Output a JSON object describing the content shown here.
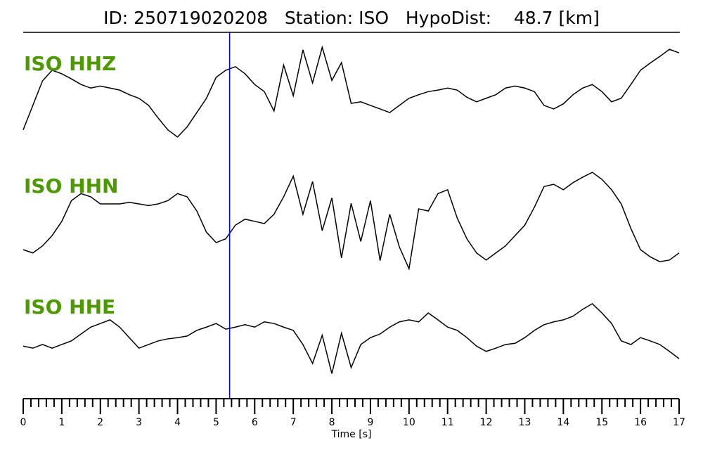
{
  "chart_data": {
    "type": "line",
    "title": "ID: 250719020208   Station: ISO   HypoDist:    48.7 [km]",
    "x_label": "Time [s]",
    "x": [
      0,
      0.25,
      0.5,
      0.75,
      1,
      1.25,
      1.5,
      1.75,
      2,
      2.25,
      2.5,
      2.75,
      3,
      3.25,
      3.5,
      3.75,
      4,
      4.25,
      4.5,
      4.75,
      5,
      5.25,
      5.5,
      5.75,
      6,
      6.25,
      6.5,
      6.75,
      7,
      7.25,
      7.5,
      7.75,
      8,
      8.25,
      8.5,
      8.75,
      9,
      9.25,
      9.5,
      9.75,
      10,
      10.25,
      10.5,
      10.75,
      11,
      11.25,
      11.5,
      11.75,
      12,
      12.25,
      12.5,
      12.75,
      13,
      13.25,
      13.5,
      13.75,
      14,
      14.25,
      14.5,
      14.75,
      15,
      15.25,
      15.5,
      15.75,
      16,
      16.25,
      16.5,
      16.75,
      17
    ],
    "series": [
      {
        "name": "ISO HHZ",
        "color": "#000000",
        "values": [
          -0.72,
          -0.24,
          0.24,
          0.45,
          0.38,
          0.28,
          0.17,
          0.1,
          0.14,
          0.1,
          0.06,
          -0.03,
          -0.1,
          -0.24,
          -0.49,
          -0.72,
          -0.86,
          -0.66,
          -0.38,
          -0.1,
          0.31,
          0.45,
          0.52,
          0.38,
          0.17,
          0.03,
          -0.35,
          0.55,
          -0.05,
          0.85,
          0.2,
          0.9,
          0.25,
          0.6,
          -0.2,
          -0.17,
          -0.24,
          -0.31,
          -0.38,
          -0.24,
          -0.1,
          -0.03,
          0.03,
          0.06,
          0.1,
          0.06,
          -0.08,
          -0.17,
          -0.1,
          -0.03,
          0.1,
          0.14,
          0.1,
          0.03,
          -0.24,
          -0.31,
          -0.21,
          -0.03,
          0.1,
          0.17,
          0.03,
          -0.17,
          -0.1,
          0.17,
          0.45,
          0.59,
          0.72,
          0.86,
          0.79
        ]
      },
      {
        "name": "ISO HHN",
        "color": "#000000",
        "values": [
          -0.55,
          -0.61,
          -0.48,
          -0.29,
          -0.03,
          0.35,
          0.48,
          0.42,
          0.29,
          0.29,
          0.29,
          0.32,
          0.29,
          0.26,
          0.29,
          0.35,
          0.48,
          0.42,
          0.16,
          -0.23,
          -0.42,
          -0.35,
          -0.1,
          0.01,
          -0.03,
          -0.07,
          0.1,
          0.42,
          0.8,
          0.1,
          0.7,
          -0.2,
          0.4,
          -0.7,
          0.3,
          -0.4,
          0.35,
          -0.75,
          0.1,
          -0.5,
          -0.9,
          0.2,
          0.16,
          0.48,
          0.55,
          0.03,
          -0.35,
          -0.61,
          -0.74,
          -0.61,
          -0.48,
          -0.29,
          -0.1,
          0.23,
          0.61,
          0.65,
          0.55,
          0.68,
          0.78,
          0.87,
          0.74,
          0.55,
          0.29,
          -0.16,
          -0.55,
          -0.68,
          -0.77,
          -0.74,
          -0.61
        ]
      },
      {
        "name": "ISO HHE",
        "color": "#000000",
        "values": [
          -0.17,
          -0.22,
          -0.13,
          -0.22,
          -0.13,
          -0.04,
          0.13,
          0.3,
          0.39,
          0.48,
          0.3,
          0.04,
          -0.22,
          -0.13,
          -0.04,
          0.01,
          0.04,
          0.08,
          0.22,
          0.3,
          0.39,
          0.25,
          0.3,
          0.36,
          0.3,
          0.43,
          0.39,
          0.3,
          0.22,
          -0.13,
          -0.6,
          0.1,
          -0.85,
          0.15,
          -0.7,
          -0.13,
          0.04,
          0.13,
          0.3,
          0.43,
          0.48,
          0.43,
          0.65,
          0.48,
          0.3,
          0.22,
          0.04,
          -0.17,
          -0.3,
          -0.22,
          -0.13,
          -0.1,
          0.04,
          0.22,
          0.36,
          0.43,
          0.48,
          0.57,
          0.74,
          0.88,
          0.65,
          0.39,
          -0.04,
          -0.13,
          0.04,
          -0.04,
          -0.13,
          -0.3,
          -0.48
        ]
      }
    ],
    "label_color": "#4c9a00",
    "ylim": [
      -1,
      1
    ],
    "xlim": [
      0,
      17
    ],
    "xticks": [
      0,
      1,
      2,
      3,
      4,
      5,
      6,
      7,
      8,
      9,
      10,
      11,
      12,
      13,
      14,
      15,
      16,
      17
    ],
    "x_minor_ticks_per_major": 5,
    "marker_time": 5.35,
    "marker_color": "#0000ff"
  }
}
